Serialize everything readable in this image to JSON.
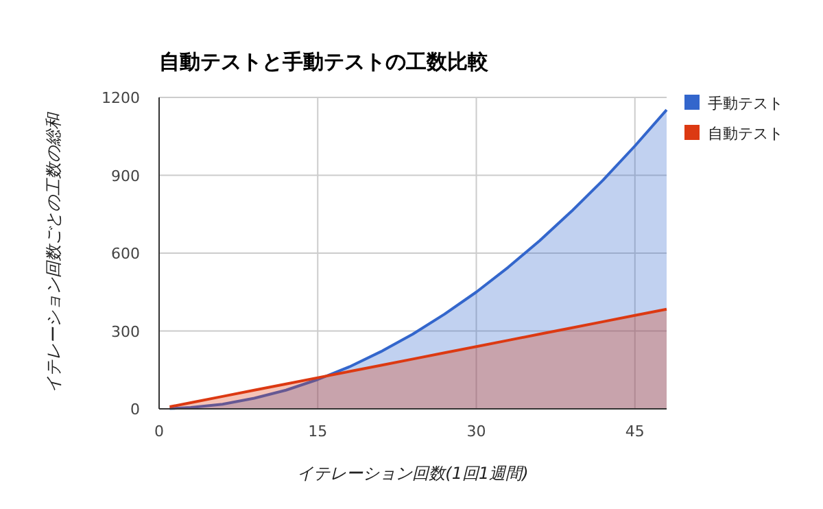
{
  "chart_data": {
    "type": "area",
    "title": "自動テストと手動テストの工数比較",
    "xlabel": "イテレーション回数(1回1週間)",
    "ylabel": "イテレーション回数ごとの工数の総和",
    "x": [
      1,
      3,
      6,
      9,
      12,
      15,
      18,
      21,
      24,
      27,
      30,
      33,
      36,
      39,
      42,
      45,
      48
    ],
    "series": [
      {
        "name": "手動テスト",
        "color": "#3366cc",
        "values": [
          1,
          5,
          18,
          41,
          72,
          113,
          162,
          221,
          288,
          365,
          450,
          545,
          648,
          761,
          882,
          1013,
          1152
        ]
      },
      {
        "name": "自動テスト",
        "color": "#dc3912",
        "values": [
          8,
          24,
          48,
          72,
          96,
          120,
          144,
          168,
          192,
          216,
          240,
          264,
          288,
          312,
          336,
          360,
          384
        ]
      }
    ],
    "xlim": [
      0,
      48
    ],
    "ylim": [
      0,
      1200
    ],
    "xticks": [
      0,
      15,
      30,
      45
    ],
    "yticks": [
      0,
      300,
      600,
      900,
      1200
    ],
    "grid": true,
    "legend": "top right",
    "marker": "none",
    "line_style": "solid"
  }
}
